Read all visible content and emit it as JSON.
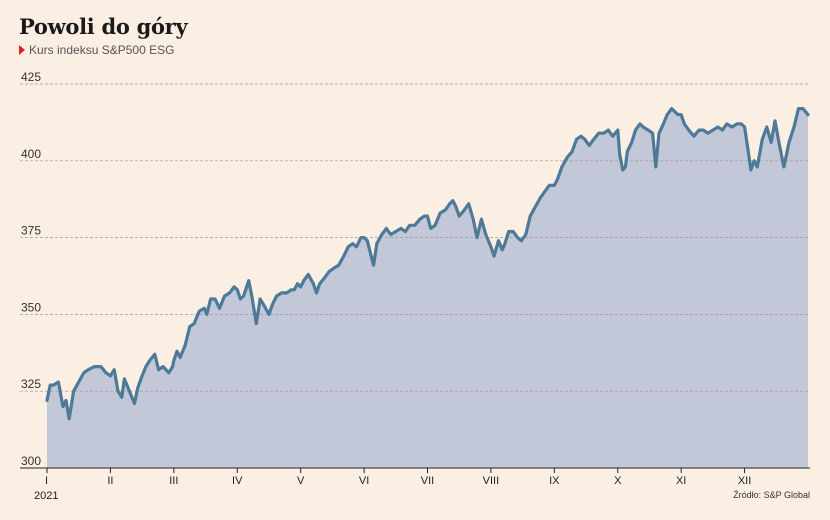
{
  "header": {
    "title": "Powoli do góry",
    "subtitle": "Kurs indeksu S&P500 ESG"
  },
  "footer": {
    "source": "Źródło: S&P Global"
  },
  "colors": {
    "background": "#fbefe3",
    "area_fill": "#c2c8d7",
    "line": "#4d7a98",
    "gridline": "#9a9a9a",
    "marker": "#e02020"
  },
  "chart_data": {
    "type": "area",
    "title": "Powoli do góry",
    "subtitle": "Kurs indeksu S&P500 ESG",
    "xlabel": "",
    "ylabel": "",
    "ylim": [
      300,
      425
    ],
    "yticks": [
      300,
      325,
      350,
      375,
      400,
      425
    ],
    "grid": true,
    "year_label": "2021",
    "x_range": [
      0,
      12
    ],
    "month_ticks": [
      {
        "label": "I",
        "x": 0.0
      },
      {
        "label": "II",
        "x": 1.0
      },
      {
        "label": "III",
        "x": 2.0
      },
      {
        "label": "IV",
        "x": 3.0
      },
      {
        "label": "V",
        "x": 4.0
      },
      {
        "label": "VI",
        "x": 5.0
      },
      {
        "label": "VII",
        "x": 6.0
      },
      {
        "label": "VIII",
        "x": 7.0
      },
      {
        "label": "IX",
        "x": 8.0
      },
      {
        "label": "X",
        "x": 9.0
      },
      {
        "label": "XI",
        "x": 10.0
      },
      {
        "label": "XII",
        "x": 11.0
      }
    ],
    "series": [
      {
        "points": [
          [
            0.0,
            322
          ],
          [
            0.05,
            327
          ],
          [
            0.1,
            327
          ],
          [
            0.18,
            328
          ],
          [
            0.25,
            320
          ],
          [
            0.3,
            322
          ],
          [
            0.35,
            316
          ],
          [
            0.42,
            325
          ],
          [
            0.5,
            328
          ],
          [
            0.58,
            331
          ],
          [
            0.65,
            332
          ],
          [
            0.75,
            333
          ],
          [
            0.85,
            333
          ],
          [
            0.93,
            331
          ],
          [
            1.0,
            330
          ],
          [
            1.06,
            332
          ],
          [
            1.12,
            325
          ],
          [
            1.18,
            323
          ],
          [
            1.22,
            329
          ],
          [
            1.3,
            325
          ],
          [
            1.38,
            321
          ],
          [
            1.43,
            326
          ],
          [
            1.5,
            330
          ],
          [
            1.56,
            333
          ],
          [
            1.62,
            335
          ],
          [
            1.7,
            337
          ],
          [
            1.76,
            332
          ],
          [
            1.83,
            333
          ],
          [
            1.92,
            331
          ],
          [
            1.98,
            333
          ],
          [
            2.0,
            335
          ],
          [
            2.05,
            338
          ],
          [
            2.1,
            336
          ],
          [
            2.18,
            340
          ],
          [
            2.25,
            346
          ],
          [
            2.32,
            347
          ],
          [
            2.4,
            351
          ],
          [
            2.48,
            352
          ],
          [
            2.52,
            350
          ],
          [
            2.58,
            355
          ],
          [
            2.65,
            355
          ],
          [
            2.72,
            352
          ],
          [
            2.8,
            356
          ],
          [
            2.88,
            357
          ],
          [
            2.95,
            359
          ],
          [
            3.0,
            358
          ],
          [
            3.05,
            355
          ],
          [
            3.1,
            356
          ],
          [
            3.18,
            361
          ],
          [
            3.23,
            356
          ],
          [
            3.3,
            347
          ],
          [
            3.36,
            355
          ],
          [
            3.42,
            353
          ],
          [
            3.5,
            350
          ],
          [
            3.55,
            353
          ],
          [
            3.62,
            356
          ],
          [
            3.7,
            357
          ],
          [
            3.78,
            357
          ],
          [
            3.85,
            358
          ],
          [
            3.9,
            358
          ],
          [
            3.95,
            360
          ],
          [
            4.0,
            359
          ],
          [
            4.05,
            361
          ],
          [
            4.12,
            363
          ],
          [
            4.2,
            360
          ],
          [
            4.25,
            357
          ],
          [
            4.3,
            360
          ],
          [
            4.38,
            362
          ],
          [
            4.45,
            364
          ],
          [
            4.52,
            365
          ],
          [
            4.6,
            366
          ],
          [
            4.68,
            369
          ],
          [
            4.75,
            372
          ],
          [
            4.82,
            373
          ],
          [
            4.88,
            372
          ],
          [
            4.95,
            375
          ],
          [
            5.0,
            375
          ],
          [
            5.05,
            374
          ],
          [
            5.1,
            370
          ],
          [
            5.15,
            366
          ],
          [
            5.2,
            373
          ],
          [
            5.28,
            376
          ],
          [
            5.35,
            378
          ],
          [
            5.42,
            376
          ],
          [
            5.5,
            377
          ],
          [
            5.58,
            378
          ],
          [
            5.65,
            377
          ],
          [
            5.72,
            379
          ],
          [
            5.8,
            379
          ],
          [
            5.88,
            381
          ],
          [
            5.95,
            382
          ],
          [
            6.0,
            382
          ],
          [
            6.05,
            378
          ],
          [
            6.12,
            379
          ],
          [
            6.2,
            383
          ],
          [
            6.28,
            384
          ],
          [
            6.35,
            386
          ],
          [
            6.4,
            387
          ],
          [
            6.45,
            385
          ],
          [
            6.5,
            382
          ],
          [
            6.58,
            384
          ],
          [
            6.65,
            386
          ],
          [
            6.72,
            381
          ],
          [
            6.78,
            375
          ],
          [
            6.85,
            381
          ],
          [
            6.92,
            376
          ],
          [
            7.0,
            372
          ],
          [
            7.05,
            369
          ],
          [
            7.12,
            374
          ],
          [
            7.18,
            371
          ],
          [
            7.22,
            373
          ],
          [
            7.28,
            377
          ],
          [
            7.35,
            377
          ],
          [
            7.42,
            375
          ],
          [
            7.48,
            374
          ],
          [
            7.55,
            376
          ],
          [
            7.62,
            382
          ],
          [
            7.7,
            385
          ],
          [
            7.78,
            388
          ],
          [
            7.85,
            390
          ],
          [
            7.92,
            392
          ],
          [
            8.0,
            392
          ],
          [
            8.05,
            394
          ],
          [
            8.12,
            398
          ],
          [
            8.2,
            401
          ],
          [
            8.28,
            403
          ],
          [
            8.35,
            407
          ],
          [
            8.42,
            408
          ],
          [
            8.48,
            407
          ],
          [
            8.55,
            405
          ],
          [
            8.62,
            407
          ],
          [
            8.7,
            409
          ],
          [
            8.78,
            409
          ],
          [
            8.85,
            410
          ],
          [
            8.92,
            408
          ],
          [
            9.0,
            410
          ],
          [
            9.03,
            402
          ],
          [
            9.08,
            397
          ],
          [
            9.12,
            398
          ],
          [
            9.15,
            403
          ],
          [
            9.22,
            406
          ],
          [
            9.28,
            410
          ],
          [
            9.35,
            412
          ],
          [
            9.4,
            411
          ],
          [
            9.48,
            410
          ],
          [
            9.55,
            409
          ],
          [
            9.6,
            398
          ],
          [
            9.65,
            409
          ],
          [
            9.72,
            412
          ],
          [
            9.78,
            415
          ],
          [
            9.85,
            417
          ],
          [
            9.9,
            416
          ],
          [
            9.95,
            415
          ],
          [
            10.0,
            415
          ],
          [
            10.05,
            412
          ],
          [
            10.12,
            410
          ],
          [
            10.2,
            408
          ],
          [
            10.28,
            410
          ],
          [
            10.35,
            410
          ],
          [
            10.42,
            409
          ],
          [
            10.5,
            410
          ],
          [
            10.58,
            411
          ],
          [
            10.65,
            410
          ],
          [
            10.72,
            412
          ],
          [
            10.8,
            411
          ],
          [
            10.88,
            412
          ],
          [
            10.95,
            412
          ],
          [
            11.0,
            411
          ],
          [
            11.05,
            404
          ],
          [
            11.1,
            397
          ],
          [
            11.15,
            400
          ],
          [
            11.2,
            398
          ],
          [
            11.28,
            407
          ],
          [
            11.35,
            411
          ],
          [
            11.42,
            406
          ],
          [
            11.48,
            413
          ],
          [
            11.55,
            405
          ],
          [
            11.62,
            398
          ],
          [
            11.7,
            406
          ],
          [
            11.78,
            411
          ],
          [
            11.85,
            417
          ],
          [
            11.92,
            417
          ],
          [
            11.96,
            416
          ],
          [
            12.0,
            415
          ]
        ]
      }
    ]
  }
}
